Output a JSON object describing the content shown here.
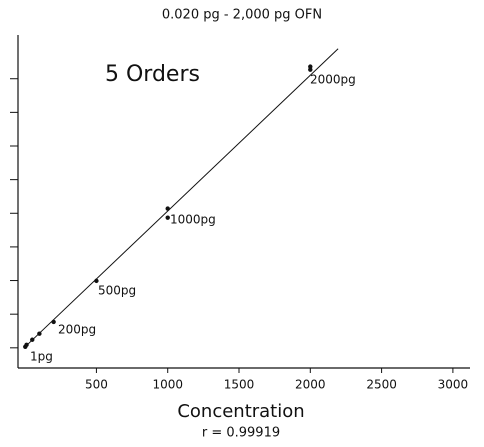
{
  "chart_data": {
    "type": "scatter",
    "title": "0.020 pg - 2,000 pg OFN",
    "x_label": "Concentration",
    "subcaption": "r = 0.99919",
    "annotations": [
      "5 Orders",
      "1pg",
      "200pg",
      "500pg",
      "1000pg",
      "2000pg"
    ],
    "x": [
      1,
      10,
      50,
      100,
      200,
      500,
      1000,
      1000,
      2000,
      2000
    ],
    "values": [
      1.03,
      1.09,
      1.24,
      1.42,
      1.77,
      2.99,
      4.87,
      5.14,
      9.27,
      9.36
    ],
    "color": "#111111",
    "fit_line": {
      "x": [
        0,
        2195
      ],
      "values": [
        1.03,
        9.89
      ],
      "color": "#111111"
    },
    "xlim": [
      -50,
      3120
    ],
    "xticks": [
      500,
      1000,
      1500,
      2000,
      2500,
      3000
    ],
    "ylim": [
      0.4,
      10.3
    ],
    "yticks": [
      1,
      2,
      3,
      4,
      5,
      6,
      7,
      8,
      9
    ]
  }
}
